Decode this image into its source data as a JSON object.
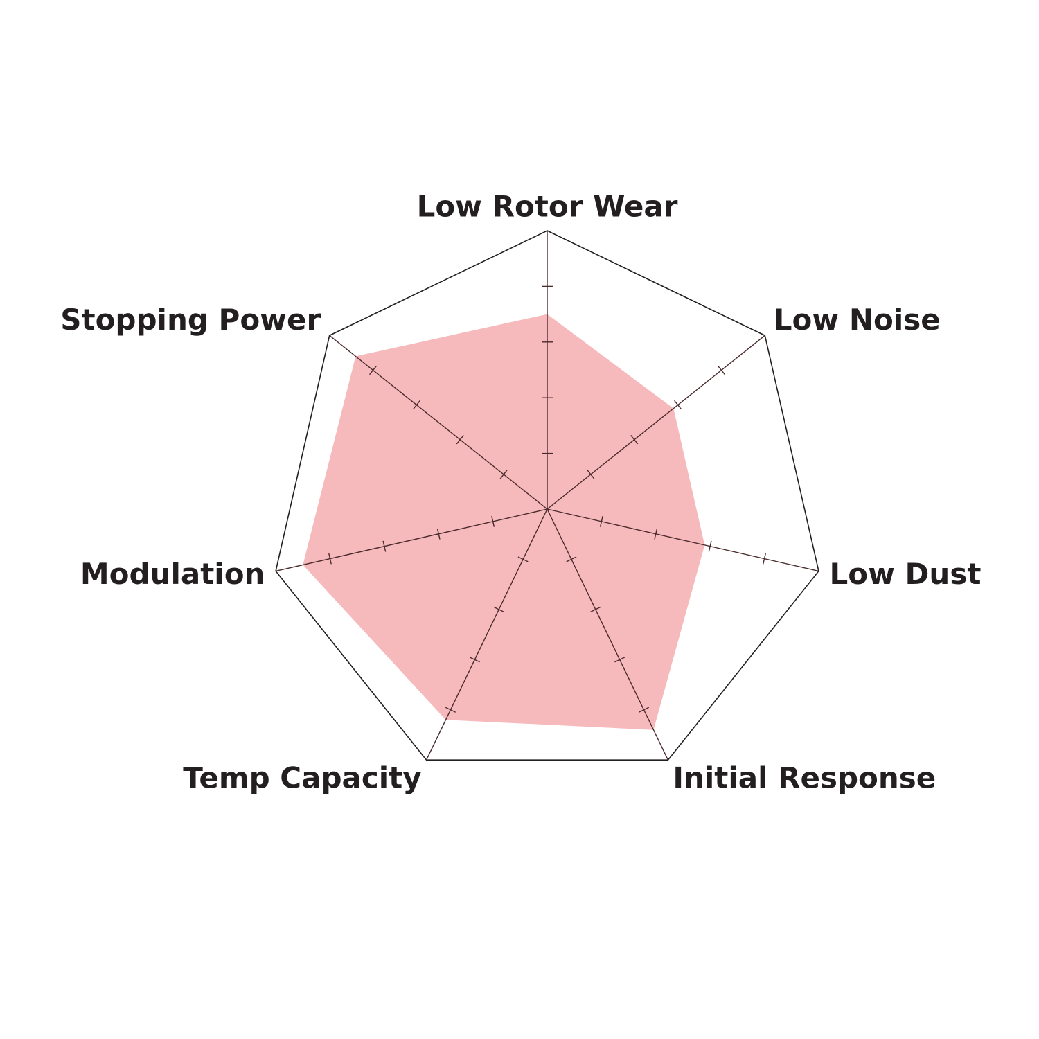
{
  "chart_data": {
    "type": "radar",
    "categories": [
      "Low Rotor Wear",
      "Low Noise",
      "Low Dust",
      "Initial Response",
      "Temp Capacity",
      "Modulation",
      "Stopping Power"
    ],
    "values": [
      3.5,
      2.9,
      2.9,
      4.4,
      4.2,
      4.5,
      4.4
    ],
    "color": "#f7babc",
    "rlim": [
      0,
      5
    ],
    "rticks": [
      1,
      2,
      3,
      4
    ]
  }
}
